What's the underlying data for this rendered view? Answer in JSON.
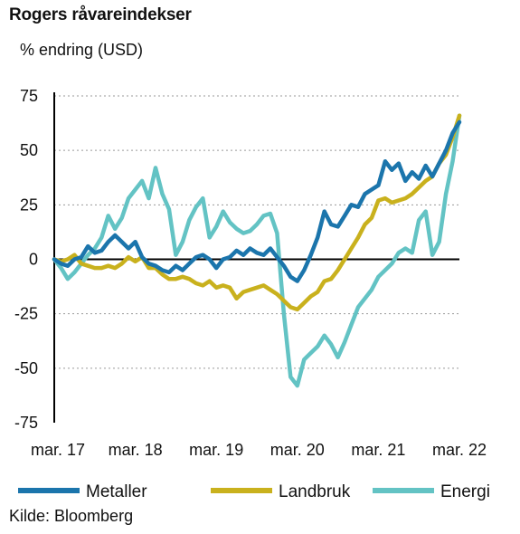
{
  "chart_data": {
    "type": "line",
    "title": "Rogers råvareindekser",
    "ylabel": "% endring (USD)",
    "source": "Kilde: Bloomberg",
    "ylim": [
      -75,
      75
    ],
    "yticks": [
      75,
      50,
      25,
      0,
      -25,
      -50,
      -75
    ],
    "xlim": [
      0,
      60
    ],
    "xticks": [
      {
        "label": "mar. 17",
        "x": 0
      },
      {
        "label": "mar. 18",
        "x": 12
      },
      {
        "label": "mar. 19",
        "x": 24
      },
      {
        "label": "mar. 20",
        "x": 36
      },
      {
        "label": "mar. 21",
        "x": 48
      },
      {
        "label": "mar. 22",
        "x": 60
      }
    ],
    "grid": "horizontal-dashed",
    "legend_position": "bottom",
    "series": [
      {
        "name": "Metaller",
        "color": "#1b75ac",
        "points": [
          [
            0,
            0
          ],
          [
            1,
            -2
          ],
          [
            2,
            -3
          ],
          [
            3,
            0
          ],
          [
            4,
            1
          ],
          [
            5,
            6
          ],
          [
            6,
            3
          ],
          [
            7,
            4
          ],
          [
            8,
            8
          ],
          [
            9,
            11
          ],
          [
            10,
            8
          ],
          [
            11,
            5
          ],
          [
            12,
            8
          ],
          [
            13,
            1
          ],
          [
            14,
            -2
          ],
          [
            15,
            -3
          ],
          [
            16,
            -5
          ],
          [
            17,
            -6
          ],
          [
            18,
            -3
          ],
          [
            19,
            -5
          ],
          [
            20,
            -2
          ],
          [
            21,
            1
          ],
          [
            22,
            2
          ],
          [
            23,
            0
          ],
          [
            24,
            -4
          ],
          [
            25,
            0
          ],
          [
            26,
            1
          ],
          [
            27,
            4
          ],
          [
            28,
            2
          ],
          [
            29,
            5
          ],
          [
            30,
            3
          ],
          [
            31,
            2
          ],
          [
            32,
            5
          ],
          [
            33,
            1
          ],
          [
            34,
            -3
          ],
          [
            35,
            -8
          ],
          [
            36,
            -10
          ],
          [
            37,
            -5
          ],
          [
            38,
            2
          ],
          [
            39,
            10
          ],
          [
            40,
            22
          ],
          [
            41,
            16
          ],
          [
            42,
            15
          ],
          [
            43,
            20
          ],
          [
            44,
            25
          ],
          [
            45,
            24
          ],
          [
            46,
            30
          ],
          [
            47,
            32
          ],
          [
            48,
            34
          ],
          [
            49,
            45
          ],
          [
            50,
            41
          ],
          [
            51,
            44
          ],
          [
            52,
            36
          ],
          [
            53,
            40
          ],
          [
            54,
            37
          ],
          [
            55,
            43
          ],
          [
            56,
            38
          ],
          [
            57,
            44
          ],
          [
            58,
            50
          ],
          [
            59,
            58
          ],
          [
            60,
            63
          ]
        ]
      },
      {
        "name": "Landbruk",
        "color": "#c9b11d",
        "points": [
          [
            0,
            0
          ],
          [
            1,
            -1
          ],
          [
            2,
            0
          ],
          [
            3,
            2
          ],
          [
            4,
            -2
          ],
          [
            5,
            -3
          ],
          [
            6,
            -4
          ],
          [
            7,
            -4
          ],
          [
            8,
            -3
          ],
          [
            9,
            -4
          ],
          [
            10,
            -2
          ],
          [
            11,
            1
          ],
          [
            12,
            -1
          ],
          [
            13,
            1
          ],
          [
            14,
            -4
          ],
          [
            15,
            -4
          ],
          [
            16,
            -7
          ],
          [
            17,
            -9
          ],
          [
            18,
            -9
          ],
          [
            19,
            -8
          ],
          [
            20,
            -9
          ],
          [
            21,
            -11
          ],
          [
            22,
            -12
          ],
          [
            23,
            -10
          ],
          [
            24,
            -13
          ],
          [
            25,
            -12
          ],
          [
            26,
            -13
          ],
          [
            27,
            -18
          ],
          [
            28,
            -15
          ],
          [
            29,
            -14
          ],
          [
            30,
            -13
          ],
          [
            31,
            -12
          ],
          [
            32,
            -14
          ],
          [
            33,
            -16
          ],
          [
            34,
            -19
          ],
          [
            35,
            -22
          ],
          [
            36,
            -23
          ],
          [
            37,
            -20
          ],
          [
            38,
            -17
          ],
          [
            39,
            -15
          ],
          [
            40,
            -10
          ],
          [
            41,
            -9
          ],
          [
            42,
            -5
          ],
          [
            43,
            0
          ],
          [
            44,
            5
          ],
          [
            45,
            10
          ],
          [
            46,
            16
          ],
          [
            47,
            19
          ],
          [
            48,
            27
          ],
          [
            49,
            28
          ],
          [
            50,
            26
          ],
          [
            51,
            27
          ],
          [
            52,
            28
          ],
          [
            53,
            30
          ],
          [
            54,
            33
          ],
          [
            55,
            36
          ],
          [
            56,
            38
          ],
          [
            57,
            44
          ],
          [
            58,
            48
          ],
          [
            59,
            56
          ],
          [
            60,
            66
          ]
        ]
      },
      {
        "name": "Energi",
        "color": "#63c3c4",
        "points": [
          [
            0,
            0
          ],
          [
            1,
            -4
          ],
          [
            2,
            -9
          ],
          [
            3,
            -6
          ],
          [
            4,
            -2
          ],
          [
            5,
            2
          ],
          [
            6,
            5
          ],
          [
            7,
            10
          ],
          [
            8,
            20
          ],
          [
            9,
            14
          ],
          [
            10,
            19
          ],
          [
            11,
            28
          ],
          [
            12,
            32
          ],
          [
            13,
            36
          ],
          [
            14,
            28
          ],
          [
            15,
            42
          ],
          [
            16,
            30
          ],
          [
            17,
            23
          ],
          [
            18,
            2
          ],
          [
            19,
            8
          ],
          [
            20,
            18
          ],
          [
            21,
            24
          ],
          [
            22,
            28
          ],
          [
            23,
            10
          ],
          [
            24,
            15
          ],
          [
            25,
            22
          ],
          [
            26,
            17
          ],
          [
            27,
            14
          ],
          [
            28,
            12
          ],
          [
            29,
            13
          ],
          [
            30,
            16
          ],
          [
            31,
            20
          ],
          [
            32,
            21
          ],
          [
            33,
            12
          ],
          [
            34,
            -25
          ],
          [
            35,
            -54
          ],
          [
            36,
            -58
          ],
          [
            37,
            -46
          ],
          [
            38,
            -43
          ],
          [
            39,
            -40
          ],
          [
            40,
            -35
          ],
          [
            41,
            -39
          ],
          [
            42,
            -45
          ],
          [
            43,
            -38
          ],
          [
            44,
            -30
          ],
          [
            45,
            -22
          ],
          [
            46,
            -18
          ],
          [
            47,
            -14
          ],
          [
            48,
            -8
          ],
          [
            49,
            -5
          ],
          [
            50,
            -2
          ],
          [
            51,
            3
          ],
          [
            52,
            5
          ],
          [
            53,
            3
          ],
          [
            54,
            18
          ],
          [
            55,
            22
          ],
          [
            56,
            2
          ],
          [
            57,
            8
          ],
          [
            58,
            30
          ],
          [
            59,
            45
          ],
          [
            60,
            66
          ]
        ]
      }
    ]
  }
}
